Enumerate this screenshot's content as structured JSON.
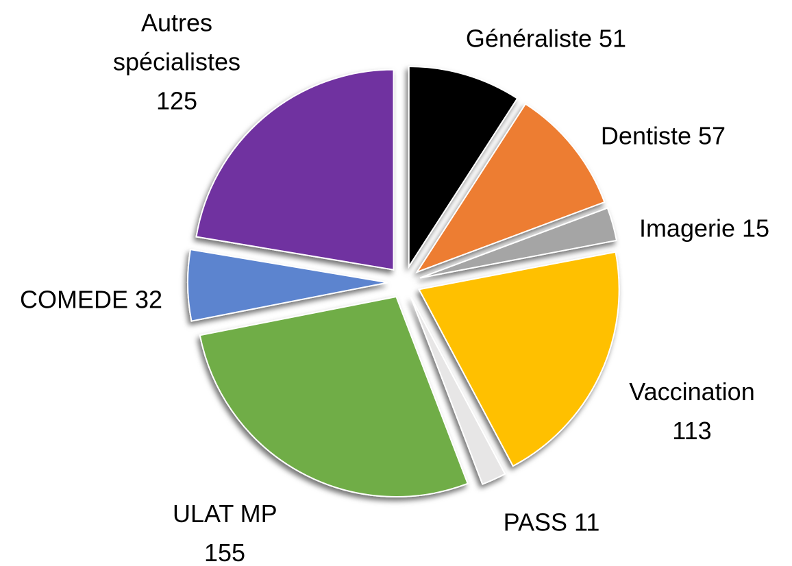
{
  "chart_data": {
    "type": "pie",
    "categories": [
      "Généraliste",
      "Dentiste",
      "Imagerie",
      "Vaccination",
      "PASS",
      "ULAT MP",
      "COMEDE",
      "Autres spécialistes"
    ],
    "values": [
      51,
      57,
      15,
      113,
      11,
      155,
      32,
      125
    ],
    "colors": [
      "#000000",
      "#ED7D31",
      "#A5A5A5",
      "#FFC000",
      "#E7E6E6",
      "#70AD47",
      "#5B84CF",
      "#7030A0"
    ],
    "exploded": true
  }
}
